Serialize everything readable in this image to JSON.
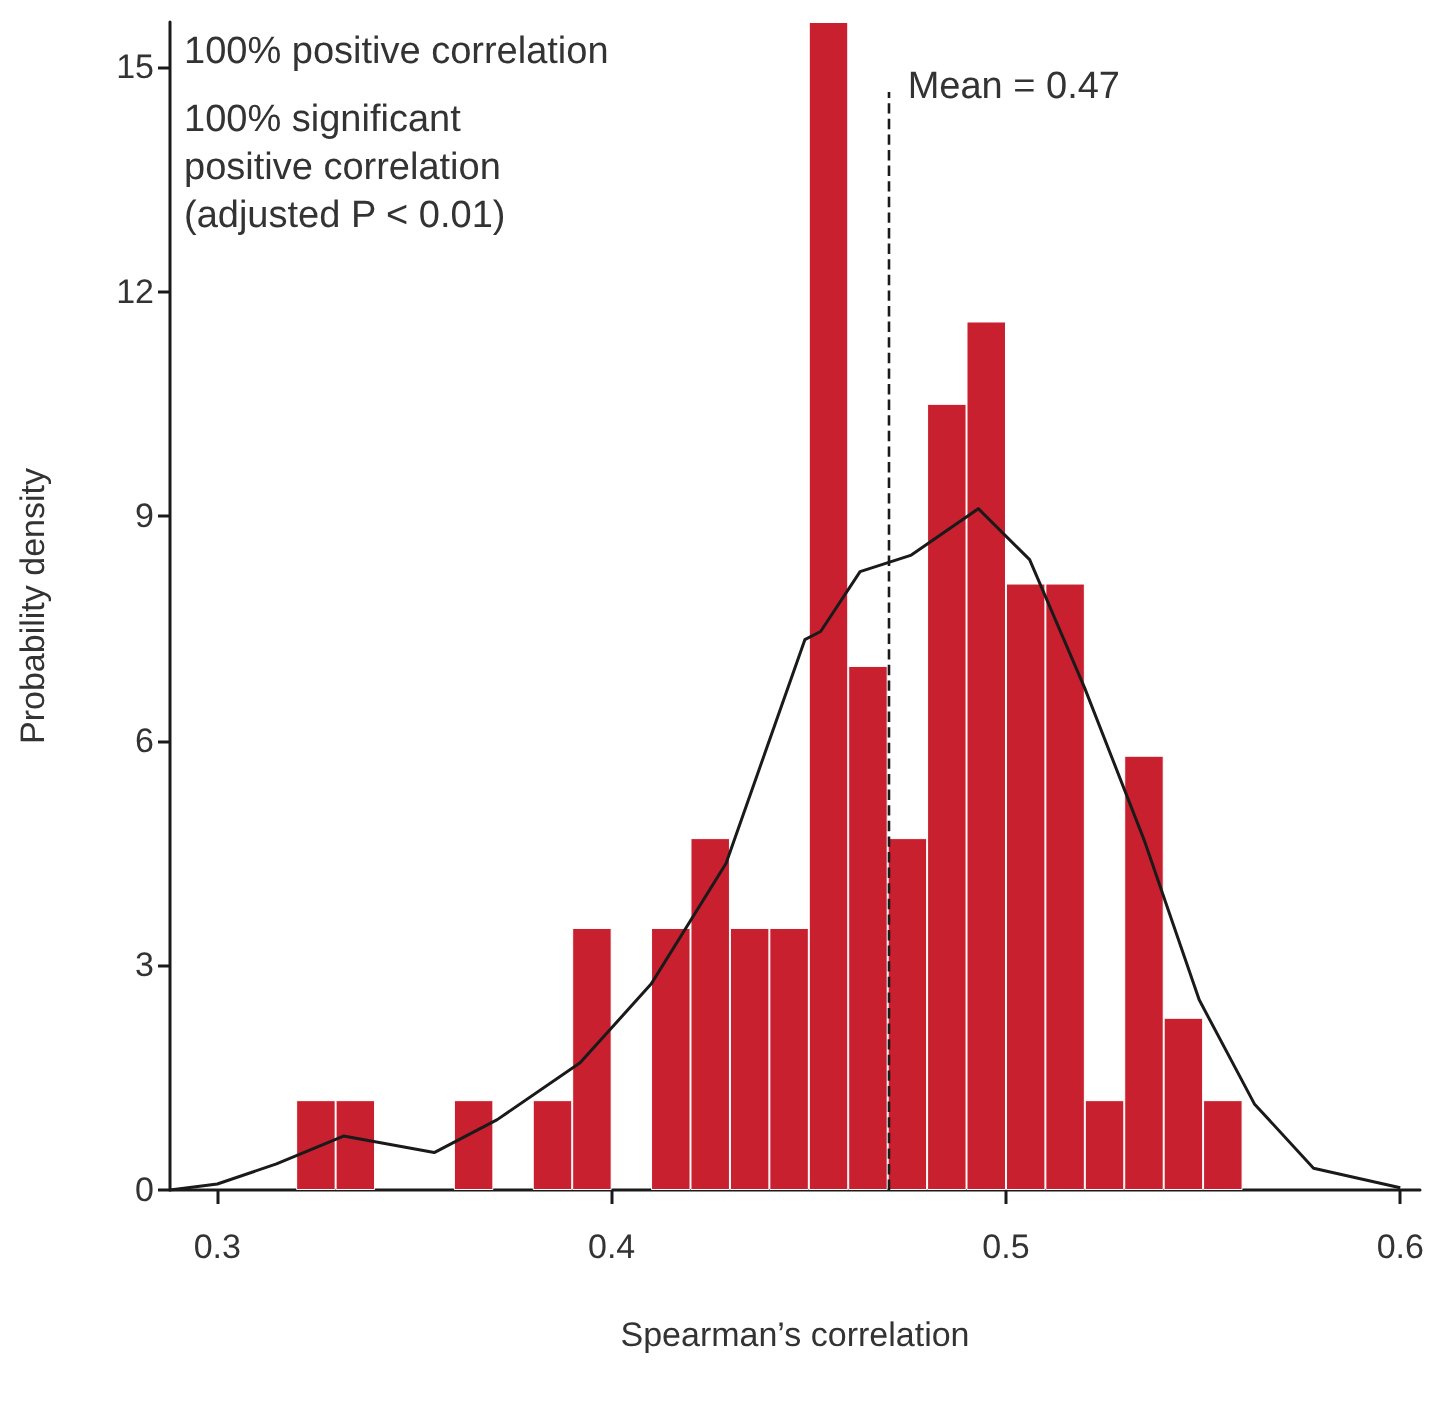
{
  "chart_data": {
    "type": "histogram",
    "xlabel": "Spearman’s correlation",
    "ylabel": "Probability density",
    "annotations": [
      "100% positive correlation",
      "100% significant\npositive correlation\n(adjusted P < 0.01)"
    ],
    "bins": [
      0.32,
      0.33,
      0.34,
      0.35,
      0.36,
      0.37,
      0.38,
      0.39,
      0.4,
      0.41,
      0.42,
      0.43,
      0.44,
      0.45,
      0.46,
      0.47,
      0.48,
      0.49,
      0.5,
      0.51,
      0.52,
      0.53,
      0.54,
      0.55,
      0.56
    ],
    "values": [
      1.2,
      1.2,
      0,
      0,
      1.2,
      0,
      1.2,
      3.5,
      0,
      3.5,
      4.7,
      3.5,
      3.5,
      15.6,
      7.0,
      4.7,
      10.5,
      11.6,
      8.1,
      8.1,
      1.2,
      5.8,
      2.3,
      1.2
    ],
    "color": "#c8202f",
    "series": [
      {
        "type": "line",
        "color": "#1a1a1a",
        "x": [
          0.288,
          0.3,
          0.315,
          0.332,
          0.355,
          0.371,
          0.392,
          0.41,
          0.429,
          0.449,
          0.453,
          0.463,
          0.476,
          0.493,
          0.506,
          0.52,
          0.535,
          0.549,
          0.563,
          0.578,
          0.6
        ],
        "values": [
          0,
          0.08,
          0.35,
          0.72,
          0.5,
          0.94,
          1.7,
          2.75,
          4.36,
          7.35,
          7.46,
          8.26,
          8.48,
          9.1,
          8.42,
          6.7,
          4.68,
          2.54,
          1.15,
          0.29,
          0.03
        ]
      }
    ],
    "ref_lines": [
      {
        "axis": "x",
        "value": 0.47,
        "label": "Mean = 0.47",
        "line_style": "dashed",
        "color": "#1a1a1a"
      }
    ],
    "xlim": [
      0.288,
      0.605
    ],
    "xticks": [
      0.3,
      0.4,
      0.5,
      0.6
    ],
    "ylim": [
      0,
      15.6
    ],
    "yticks": [
      0,
      3,
      6,
      9,
      12,
      15
    ],
    "grid": false
  }
}
